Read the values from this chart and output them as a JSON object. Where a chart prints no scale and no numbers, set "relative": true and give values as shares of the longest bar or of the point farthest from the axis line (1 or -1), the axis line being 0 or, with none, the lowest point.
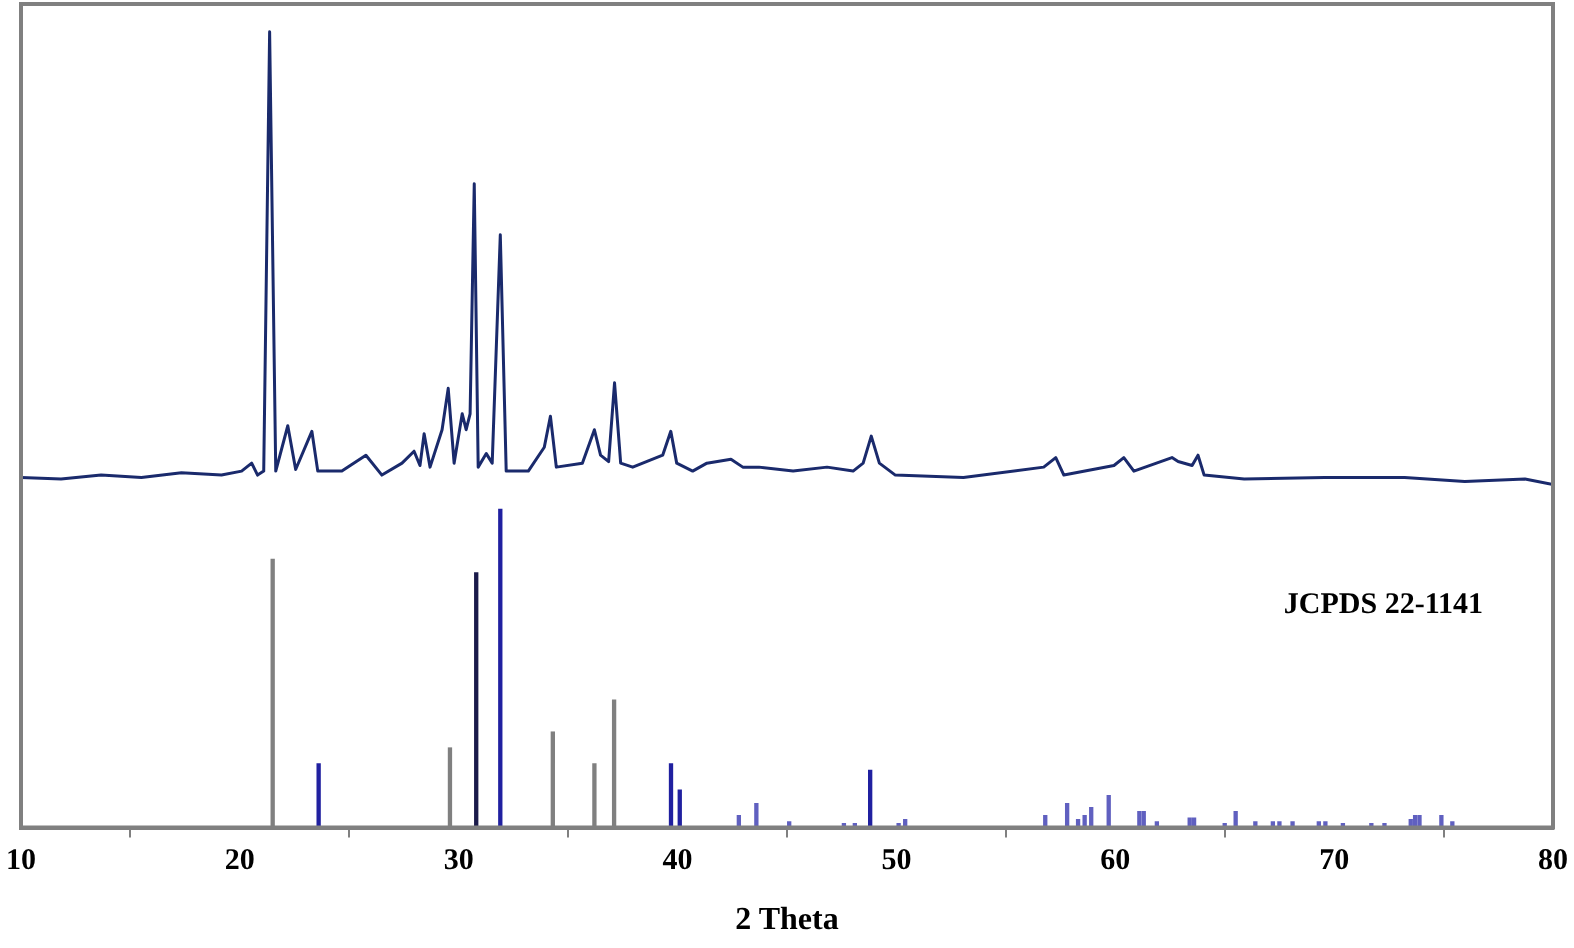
{
  "chart_data": {
    "type": "line",
    "xlabel": "2 Theta",
    "relative": true,
    "grid": false,
    "marker": "none",
    "line_style": "solid",
    "xlim": [
      10,
      80
    ],
    "xticks": [
      10,
      20,
      30,
      40,
      50,
      60,
      70,
      80
    ],
    "annotations": [
      "JCPDS 22-1141"
    ],
    "series": [
      {
        "color": "#1a2a6c",
        "x": [
          10,
          11.83,
          13.66,
          15.5,
          17.33,
          19.16,
          20.08,
          20.54,
          20.81,
          21.09,
          21.36,
          21.64,
          22.19,
          22.55,
          23.29,
          23.56,
          24.66,
          25.76,
          26.49,
          27.41,
          27.96,
          28.23,
          28.42,
          28.69,
          29.24,
          29.52,
          29.79,
          30.16,
          30.34,
          30.52,
          30.71,
          30.89,
          31.26,
          31.53,
          31.9,
          32.17,
          33.18,
          33.91,
          34.19,
          34.46,
          35.65,
          36.2,
          36.48,
          36.85,
          37.12,
          37.4,
          37.95,
          39.32,
          39.69,
          39.96,
          40.69,
          41.34,
          42.44,
          42.98,
          43.72,
          45.28,
          46.83,
          48.02,
          48.48,
          48.85,
          49.22,
          49.95,
          53.06,
          56.73,
          57.28,
          57.65,
          59.94,
          60.39,
          60.85,
          62.59,
          62.87,
          63.51,
          63.78,
          64.06,
          65.89,
          69.56,
          73.22,
          75.97,
          78.72,
          80
        ],
        "values": [
          0.44,
          0.438,
          0.443,
          0.44,
          0.446,
          0.443,
          0.448,
          0.458,
          0.443,
          0.448,
          1,
          0.448,
          0.505,
          0.45,
          0.498,
          0.448,
          0.448,
          0.468,
          0.443,
          0.458,
          0.473,
          0.455,
          0.495,
          0.453,
          0.5,
          0.552,
          0.458,
          0.52,
          0.5,
          0.52,
          0.809,
          0.453,
          0.47,
          0.458,
          0.745,
          0.448,
          0.448,
          0.478,
          0.517,
          0.453,
          0.458,
          0.5,
          0.468,
          0.46,
          0.559,
          0.458,
          0.453,
          0.468,
          0.498,
          0.458,
          0.448,
          0.458,
          0.463,
          0.453,
          0.453,
          0.448,
          0.453,
          0.448,
          0.458,
          0.492,
          0.458,
          0.443,
          0.44,
          0.453,
          0.465,
          0.443,
          0.455,
          0.465,
          0.448,
          0.465,
          0.46,
          0.455,
          0.468,
          0.443,
          0.438,
          0.44,
          0.44,
          0.435,
          0.438,
          0.431
        ]
      },
      {
        "type": "bar",
        "x": [
          21.5,
          23.6,
          29.6,
          30.8,
          31.9,
          34.3,
          36.2,
          37.1,
          39.7,
          40.1,
          42.8,
          43.6,
          45.1,
          47.6,
          48.1,
          48.8,
          50.1,
          50.4,
          56.8,
          57.8,
          58.3,
          58.6,
          58.9,
          59.7,
          61.1,
          61.3,
          61.9,
          63.4,
          63.6,
          65.0,
          65.5,
          66.4,
          67.2,
          67.5,
          68.1,
          69.3,
          69.6,
          70.4,
          71.7,
          72.3,
          73.5,
          73.7,
          73.9,
          74.9,
          75.4
        ],
        "values": [
          0.337,
          0.08,
          0.1,
          0.32,
          0.4,
          0.12,
          0.08,
          0.16,
          0.08,
          0.047,
          0.015,
          0.03,
          0.007,
          0.005,
          0.005,
          0.072,
          0.005,
          0.01,
          0.015,
          0.03,
          0.01,
          0.015,
          0.025,
          0.04,
          0.02,
          0.02,
          0.007,
          0.012,
          0.012,
          0.005,
          0.02,
          0.007,
          0.007,
          0.007,
          0.007,
          0.007,
          0.007,
          0.005,
          0.005,
          0.005,
          0.01,
          0.015,
          0.015,
          0.015,
          0.007
        ],
        "colors": [
          "#808080",
          "#2020a0",
          "#808080",
          "#1a1a4a",
          "#2020a0",
          "#808080",
          "#808080",
          "#808080",
          "#2020a0",
          "#2020a0",
          "#6060c0",
          "#6060c0",
          "#6060c0",
          "#6060c0",
          "#6060c0",
          "#2020a0",
          "#6060c0",
          "#6060c0",
          "#6060c0",
          "#6060c0",
          "#6060c0",
          "#6060c0",
          "#6060c0",
          "#6060c0",
          "#6060c0",
          "#6060c0",
          "#6060c0",
          "#6060c0",
          "#6060c0",
          "#6060c0",
          "#6060c0",
          "#6060c0",
          "#6060c0",
          "#6060c0",
          "#6060c0",
          "#6060c0",
          "#6060c0",
          "#6060c0",
          "#6060c0",
          "#6060c0",
          "#6060c0",
          "#6060c0",
          "#6060c0",
          "#6060c0",
          "#6060c0"
        ]
      }
    ]
  }
}
